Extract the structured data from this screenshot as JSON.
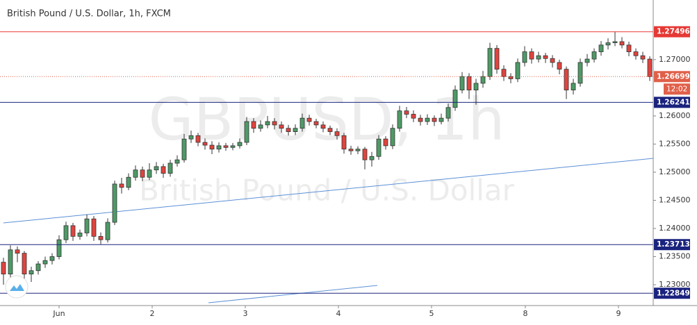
{
  "chart_data": {
    "type": "candlestick",
    "title": "British Pound / U.S. Dollar, 1h, FXCM",
    "watermark": [
      "GBPUSD, 1h",
      "British Pound / U.S. Dollar"
    ],
    "up_color": "#4e9a66",
    "down_color": "#e0443e",
    "open": [
      1.234,
      1.2319,
      1.2362,
      1.2356,
      1.2319,
      1.2325,
      1.2337,
      1.2343,
      1.235,
      1.238,
      1.2405,
      1.2386,
      1.2392,
      1.2417,
      1.2386,
      1.238,
      1.2411,
      1.2479,
      1.2473,
      1.2491,
      1.2504,
      1.2491,
      1.2504,
      1.251,
      1.2498,
      1.2516,
      1.2522,
      1.2559,
      1.2565,
      1.2553,
      1.2548,
      1.2541,
      1.2547,
      1.2544,
      1.2547,
      1.2553,
      1.259,
      1.2578,
      1.2584,
      1.259,
      1.2584,
      1.2578,
      1.2572,
      1.2578,
      1.2596,
      1.259,
      1.2584,
      1.2578,
      1.2572,
      1.2565,
      1.2541,
      1.2538,
      1.2541,
      1.2522,
      1.2528,
      1.2559,
      1.2547,
      1.2578,
      1.2609,
      1.2603,
      1.2596,
      1.259,
      1.2596,
      1.259,
      1.2596,
      1.2615,
      1.2646,
      1.267,
      1.2646,
      1.2658,
      1.267,
      1.272,
      1.2683,
      1.267,
      1.2666,
      1.2695,
      1.2714,
      1.2701,
      1.2707,
      1.2702,
      1.2695,
      1.2683,
      1.2646,
      1.2658,
      1.2695,
      1.2701,
      1.2714,
      1.2726,
      1.273,
      1.2732,
      1.2726,
      1.2714,
      1.2707,
      1.2701
    ],
    "high": [
      1.2348,
      1.237,
      1.2368,
      1.236,
      1.2332,
      1.2342,
      1.235,
      1.2356,
      1.2388,
      1.2412,
      1.241,
      1.2398,
      1.2425,
      1.2422,
      1.2393,
      1.2418,
      1.2485,
      1.249,
      1.2498,
      1.2512,
      1.251,
      1.2516,
      1.2518,
      1.2515,
      1.2522,
      1.253,
      1.2568,
      1.2574,
      1.257,
      1.256,
      1.2555,
      1.2553,
      1.2552,
      1.2552,
      1.256,
      1.2598,
      1.2596,
      1.2592,
      1.26,
      1.2596,
      1.259,
      1.2584,
      1.2585,
      1.2604,
      1.2602,
      1.2595,
      1.259,
      1.2583,
      1.2578,
      1.257,
      1.2547,
      1.2546,
      1.2545,
      1.2536,
      1.2566,
      1.2564,
      1.2585,
      1.2618,
      1.2616,
      1.261,
      1.2602,
      1.2603,
      1.2601,
      1.2604,
      1.2622,
      1.2654,
      1.2678,
      1.2676,
      1.2666,
      1.268,
      1.273,
      1.2726,
      1.269,
      1.2676,
      1.2702,
      1.2724,
      1.272,
      1.2714,
      1.2712,
      1.2708,
      1.27,
      1.2688,
      1.2666,
      1.2702,
      1.271,
      1.272,
      1.2733,
      1.2738,
      1.275,
      1.274,
      1.2732,
      1.272,
      1.2714,
      1.2706
    ],
    "low": [
      1.23,
      1.2312,
      1.234,
      1.2298,
      1.2305,
      1.2318,
      1.233,
      1.2336,
      1.2345,
      1.2374,
      1.2378,
      1.238,
      1.2386,
      1.2378,
      1.2372,
      1.2375,
      1.2406,
      1.2462,
      1.2468,
      1.2485,
      1.2484,
      1.2486,
      1.2497,
      1.249,
      1.2492,
      1.251,
      1.2517,
      1.2552,
      1.2546,
      1.254,
      1.2532,
      1.2535,
      1.2538,
      1.2539,
      1.2542,
      1.2548,
      1.257,
      1.2572,
      1.2578,
      1.2576,
      1.257,
      1.2565,
      1.2566,
      1.2572,
      1.2583,
      1.2578,
      1.2571,
      1.2566,
      1.2558,
      1.2533,
      1.2531,
      1.2532,
      1.2505,
      1.251,
      1.2522,
      1.254,
      1.2541,
      1.2572,
      1.2596,
      1.2589,
      1.2583,
      1.2584,
      1.2582,
      1.2585,
      1.259,
      1.2609,
      1.264,
      1.263,
      1.262,
      1.265,
      1.2664,
      1.2675,
      1.2662,
      1.2658,
      1.266,
      1.2688,
      1.2693,
      1.2695,
      1.2694,
      1.2686,
      1.2674,
      1.263,
      1.2638,
      1.2652,
      1.2688,
      1.2695,
      1.2707,
      1.2718,
      1.2724,
      1.272,
      1.2706,
      1.27,
      1.2694,
      1.2662
    ],
    "close": [
      1.2319,
      1.2362,
      1.2356,
      1.2319,
      1.2325,
      1.2337,
      1.2343,
      1.235,
      1.238,
      1.2405,
      1.2386,
      1.2392,
      1.2417,
      1.2386,
      1.238,
      1.2411,
      1.2479,
      1.2473,
      1.2491,
      1.2504,
      1.2491,
      1.2504,
      1.251,
      1.2498,
      1.2516,
      1.2522,
      1.2559,
      1.2565,
      1.2553,
      1.2548,
      1.2541,
      1.2547,
      1.2544,
      1.2547,
      1.2553,
      1.259,
      1.2578,
      1.2584,
      1.259,
      1.2584,
      1.2578,
      1.2572,
      1.2578,
      1.2596,
      1.259,
      1.2584,
      1.2578,
      1.2572,
      1.2565,
      1.2541,
      1.2538,
      1.2541,
      1.2522,
      1.2528,
      1.2559,
      1.2547,
      1.2578,
      1.2609,
      1.2603,
      1.2596,
      1.259,
      1.2596,
      1.259,
      1.2596,
      1.2615,
      1.2646,
      1.267,
      1.2646,
      1.2658,
      1.267,
      1.272,
      1.2683,
      1.267,
      1.2666,
      1.2695,
      1.2714,
      1.2701,
      1.2707,
      1.2702,
      1.2695,
      1.2683,
      1.2646,
      1.2658,
      1.2695,
      1.2701,
      1.2714,
      1.2726,
      1.273,
      1.2732,
      1.2726,
      1.2714,
      1.2707,
      1.2701,
      1.26699
    ],
    "xticks": [
      {
        "value": 8,
        "label": "Jun"
      },
      {
        "value": 21.4,
        "label": "2"
      },
      {
        "value": 34.8,
        "label": "3"
      },
      {
        "value": 48.2,
        "label": "4"
      },
      {
        "value": 61.6,
        "label": "5"
      },
      {
        "value": 75.1,
        "label": "8"
      },
      {
        "value": 88.5,
        "label": "9"
      }
    ],
    "ylim": [
      1.2263,
      1.2806
    ],
    "yticks": [
      {
        "value": 1.23,
        "label": "1.23000"
      },
      {
        "value": 1.235,
        "label": "1.23500"
      },
      {
        "value": 1.24,
        "label": "1.24000"
      },
      {
        "value": 1.245,
        "label": "1.24500"
      },
      {
        "value": 1.25,
        "label": "1.25000"
      },
      {
        "value": 1.255,
        "label": "1.25500"
      },
      {
        "value": 1.26,
        "label": "1.26000"
      },
      {
        "value": 1.27,
        "label": "1.27000"
      }
    ],
    "levels": [
      {
        "value": 1.27496,
        "color": "#e53935"
      },
      {
        "value": 1.26241,
        "color": "#1a237e"
      },
      {
        "value": 1.23713,
        "color": "#1a237e"
      },
      {
        "value": 1.22849,
        "color": "#1a237e"
      }
    ],
    "last_price": {
      "value": 1.26699,
      "color": "#e0604a",
      "countdown": "12:02"
    }
  }
}
